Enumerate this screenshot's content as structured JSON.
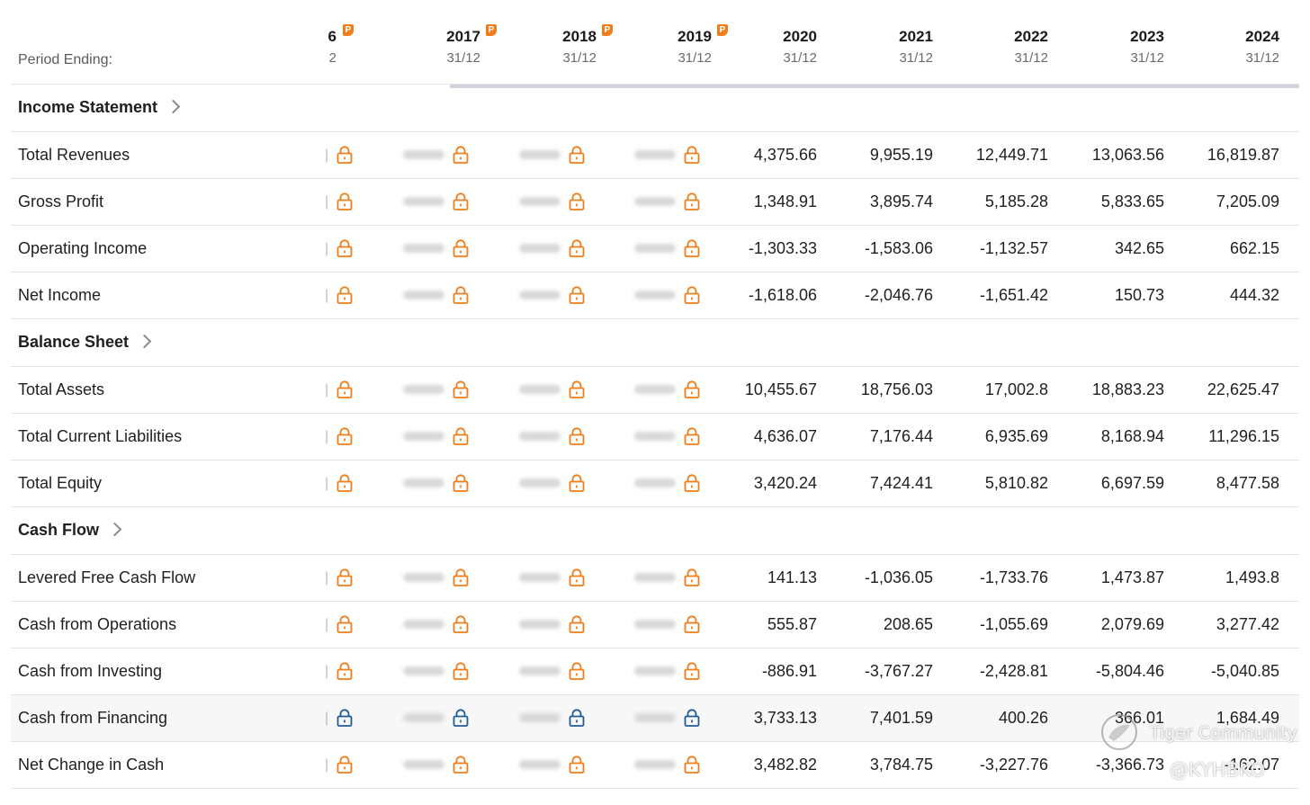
{
  "header": {
    "period_label": "Period Ending:",
    "partial_year": "6",
    "partial_date": "2",
    "columns": [
      {
        "year": "2017",
        "date": "31/12",
        "premium": true
      },
      {
        "year": "2018",
        "date": "31/12",
        "premium": true
      },
      {
        "year": "2019",
        "date": "31/12",
        "premium": true
      },
      {
        "year": "2020",
        "date": "31/12",
        "premium": false
      },
      {
        "year": "2021",
        "date": "31/12",
        "premium": false
      },
      {
        "year": "2022",
        "date": "31/12",
        "premium": false
      },
      {
        "year": "2023",
        "date": "31/12",
        "premium": false
      },
      {
        "year": "2024",
        "date": "31/12",
        "premium": false
      }
    ],
    "premium_badge": "P"
  },
  "rows": [
    {
      "type": "section",
      "label": "Income Statement"
    },
    {
      "type": "data",
      "label": "Total Revenues",
      "values": [
        "4,375.66",
        "9,955.19",
        "12,449.71",
        "13,063.56",
        "16,819.87"
      ]
    },
    {
      "type": "data",
      "label": "Gross Profit",
      "values": [
        "1,348.91",
        "3,895.74",
        "5,185.28",
        "5,833.65",
        "7,205.09"
      ]
    },
    {
      "type": "data",
      "label": "Operating Income",
      "values": [
        "-1,303.33",
        "-1,583.06",
        "-1,132.57",
        "342.65",
        "662.15"
      ]
    },
    {
      "type": "data",
      "label": "Net Income",
      "values": [
        "-1,618.06",
        "-2,046.76",
        "-1,651.42",
        "150.73",
        "444.32"
      ]
    },
    {
      "type": "section",
      "label": "Balance Sheet"
    },
    {
      "type": "data",
      "label": "Total Assets",
      "values": [
        "10,455.67",
        "18,756.03",
        "17,002.8",
        "18,883.23",
        "22,625.47"
      ]
    },
    {
      "type": "data",
      "label": "Total Current Liabilities",
      "values": [
        "4,636.07",
        "7,176.44",
        "6,935.69",
        "8,168.94",
        "11,296.15"
      ]
    },
    {
      "type": "data",
      "label": "Total Equity",
      "values": [
        "3,420.24",
        "7,424.41",
        "5,810.82",
        "6,697.59",
        "8,477.58"
      ]
    },
    {
      "type": "section",
      "label": "Cash Flow"
    },
    {
      "type": "data",
      "label": "Levered Free Cash Flow",
      "values": [
        "141.13",
        "-1,036.05",
        "-1,733.76",
        "1,473.87",
        "1,493.8"
      ]
    },
    {
      "type": "data",
      "label": "Cash from Operations",
      "values": [
        "555.87",
        "208.65",
        "-1,055.69",
        "2,079.69",
        "3,277.42"
      ]
    },
    {
      "type": "data",
      "label": "Cash from Investing",
      "values": [
        "-886.91",
        "-3,767.27",
        "-2,428.81",
        "-5,804.46",
        "-5,040.85"
      ]
    },
    {
      "type": "data",
      "label": "Cash from Financing",
      "values": [
        "3,733.13",
        "7,401.59",
        "400.26",
        "366.01",
        "1,684.49"
      ],
      "highlight": true
    },
    {
      "type": "data",
      "label": "Net Change in Cash",
      "values": [
        "3,482.82",
        "3,784.75",
        "-3,227.76",
        "-3,366.73",
        "-162.07"
      ]
    }
  ],
  "watermark": {
    "brand": "Tiger Community",
    "handle": "@KYHBKO"
  },
  "colors": {
    "lock": "#f07d1a",
    "lock_active": "#1f5d9a",
    "badge": "#f07d1a",
    "border": "#e3e3e3"
  }
}
